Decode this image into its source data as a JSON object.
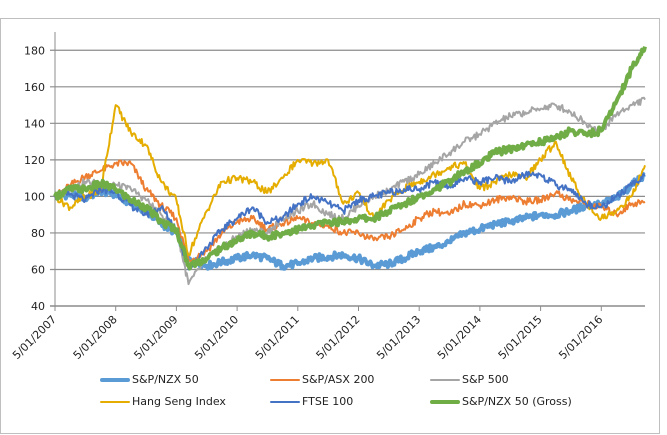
{
  "chart_data": {
    "type": "line",
    "title": "",
    "xlabel": "",
    "ylabel": "",
    "ylim": [
      40,
      190
    ],
    "yticks": [
      40,
      60,
      80,
      100,
      120,
      140,
      160,
      180
    ],
    "xlim": [
      2007.0,
      2016.72
    ],
    "xticks": [
      {
        "value": 2007.0,
        "label": "5/01/2007"
      },
      {
        "value": 2008.0,
        "label": "5/01/2008"
      },
      {
        "value": 2009.0,
        "label": "5/01/2009"
      },
      {
        "value": 2010.0,
        "label": "5/01/2010"
      },
      {
        "value": 2011.0,
        "label": "5/01/2011"
      },
      {
        "value": 2012.0,
        "label": "5/01/2012"
      },
      {
        "value": 2013.0,
        "label": "5/01/2013"
      },
      {
        "value": 2014.0,
        "label": "5/01/2014"
      },
      {
        "value": 2015.0,
        "label": "5/01/2015"
      },
      {
        "value": 2016.0,
        "label": "5/01/2016"
      }
    ],
    "grid": "horizontal",
    "legend_position": "bottom",
    "x": [
      2007.0,
      2007.25,
      2007.5,
      2007.75,
      2008.0,
      2008.25,
      2008.5,
      2008.75,
      2009.0,
      2009.2,
      2009.5,
      2009.75,
      2010.0,
      2010.25,
      2010.5,
      2010.75,
      2011.0,
      2011.25,
      2011.5,
      2011.75,
      2012.0,
      2012.25,
      2012.5,
      2012.75,
      2013.0,
      2013.25,
      2013.5,
      2013.75,
      2014.0,
      2014.25,
      2014.5,
      2014.75,
      2015.0,
      2015.25,
      2015.5,
      2015.75,
      2016.0,
      2016.25,
      2016.5,
      2016.72
    ],
    "series": [
      {
        "name": "S&P/NZX 50",
        "color": "#5b9bd5",
        "width": 4,
        "values": [
          100,
          101,
          99,
          103,
          101,
          96,
          92,
          85,
          80,
          66,
          62,
          64,
          66,
          68,
          66,
          62,
          63,
          66,
          67,
          68,
          66,
          62,
          63,
          66,
          70,
          72,
          75,
          80,
          82,
          85,
          86,
          88,
          90,
          90,
          92,
          95,
          96,
          99,
          106,
          112
        ]
      },
      {
        "name": "S&P/ASX 200",
        "color": "#ed7d31",
        "width": 2,
        "values": [
          100,
          106,
          111,
          114,
          118,
          118,
          104,
          95,
          88,
          65,
          70,
          80,
          86,
          88,
          82,
          85,
          88,
          85,
          84,
          80,
          80,
          76,
          78,
          82,
          88,
          92,
          90,
          96,
          95,
          98,
          100,
          97,
          98,
          102,
          98,
          96,
          94,
          90,
          96,
          97
        ]
      },
      {
        "name": "S&P 500",
        "color": "#a5a5a5",
        "width": 2,
        "values": [
          100,
          104,
          108,
          107,
          106,
          104,
          98,
          90,
          82,
          52,
          66,
          72,
          78,
          82,
          80,
          88,
          92,
          96,
          90,
          88,
          95,
          100,
          103,
          108,
          112,
          118,
          124,
          130,
          134,
          140,
          144,
          146,
          148,
          150,
          146,
          140,
          136,
          145,
          150,
          153
        ]
      },
      {
        "name": "Hang Seng Index",
        "color": "#e5ad00",
        "width": 2,
        "values": [
          100,
          94,
          100,
          103,
          150,
          135,
          128,
          108,
          98,
          68,
          92,
          108,
          110,
          108,
          102,
          110,
          120,
          118,
          120,
          96,
          102,
          88,
          98,
          104,
          108,
          112,
          116,
          118,
          104,
          108,
          112,
          110,
          120,
          130,
          110,
          96,
          88,
          92,
          100,
          117
        ]
      },
      {
        "name": "FTSE 100",
        "color": "#4472c4",
        "width": 2,
        "values": [
          100,
          101,
          98,
          104,
          102,
          95,
          90,
          94,
          82,
          60,
          72,
          82,
          88,
          94,
          86,
          88,
          96,
          100,
          96,
          92,
          98,
          100,
          102,
          104,
          104,
          108,
          106,
          110,
          108,
          110,
          108,
          112,
          112,
          106,
          104,
          96,
          94,
          100,
          106,
          112
        ]
      },
      {
        "name": "S&P/NZX 50 (Gross)",
        "color": "#70ad47",
        "width": 4,
        "values": [
          100,
          104,
          104,
          107,
          104,
          98,
          94,
          86,
          82,
          62,
          66,
          72,
          76,
          80,
          78,
          80,
          82,
          84,
          86,
          86,
          88,
          88,
          92,
          96,
          100,
          104,
          108,
          114,
          118,
          124,
          126,
          128,
          130,
          132,
          136,
          134,
          136,
          152,
          170,
          182
        ]
      }
    ]
  }
}
